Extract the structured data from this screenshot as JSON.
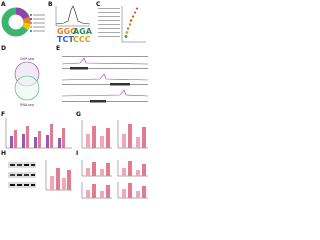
{
  "panels": [
    {
      "label": "A"
    },
    {
      "label": "B"
    },
    {
      "label": "C"
    },
    {
      "label": "D"
    },
    {
      "label": "E"
    },
    {
      "label": "F"
    },
    {
      "label": "G"
    },
    {
      "label": "H"
    },
    {
      "label": "I"
    }
  ],
  "venn": {
    "top": "ChIP-seq",
    "bottom": "RNA-seq"
  }
}
